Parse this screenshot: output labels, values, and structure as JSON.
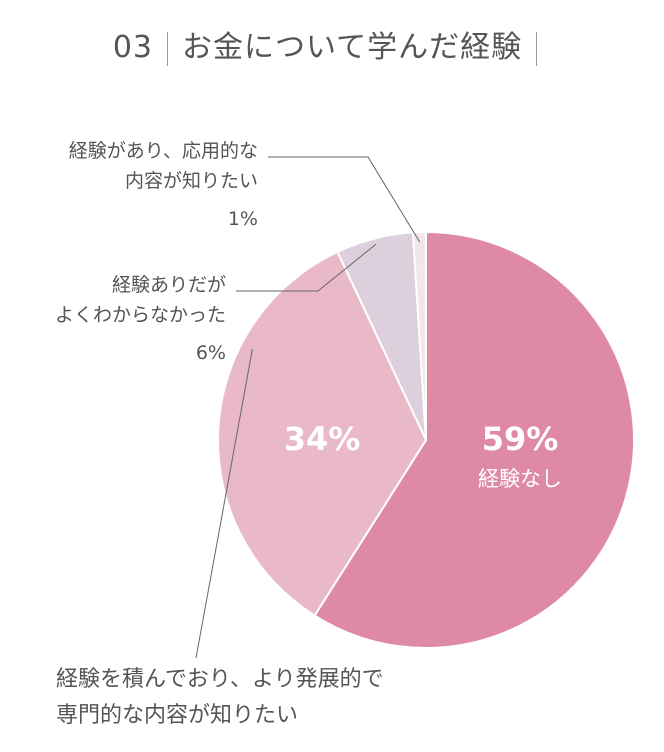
{
  "header": {
    "number": "03",
    "text": "お金について学んだ経験"
  },
  "chart_data": {
    "type": "pie",
    "categories": [
      "経験なし",
      "経験を積んでおり、より発展的で専門的な内容が知りたい",
      "経験ありだがよくわからなかった",
      "経験があり、応用的な内容が知りたい"
    ],
    "values": [
      59,
      34,
      6,
      1
    ],
    "labels": [
      {
        "pct": "59%",
        "name": "経験なし"
      },
      {
        "pct": "34%",
        "line1": "経験を積んでおり、より発展的で",
        "line2": "専門的な内容が知りたい"
      },
      {
        "pct": "6%",
        "line1": "経験ありだが",
        "line2": "よくわからなかった"
      },
      {
        "pct": "1%",
        "line1": "経験があり、応用的な",
        "line2": "内容が知りたい"
      }
    ],
    "colors": [
      "#de8aa5",
      "#eab9c8",
      "#ddd0dc",
      "#f1e6ea"
    ]
  }
}
